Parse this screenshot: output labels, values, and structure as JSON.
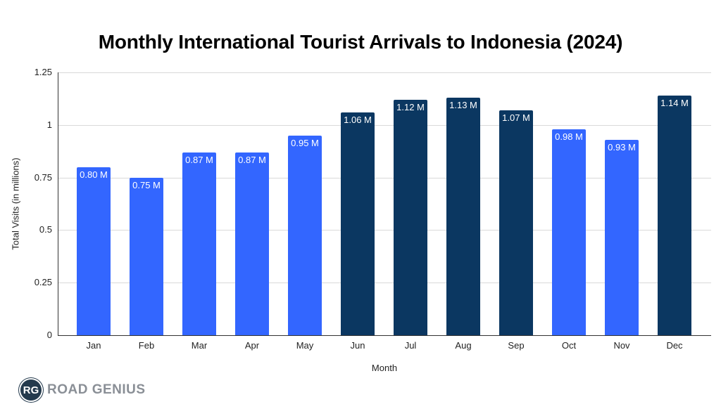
{
  "chart_data": {
    "type": "bar",
    "title": "Monthly International Tourist Arrivals to Indonesia (2024)",
    "xlabel": "Month",
    "ylabel": "Total Visits (in millions)",
    "ylim": [
      0,
      1.25
    ],
    "yticks": [
      "0",
      "0.25",
      "0.5",
      "0.75",
      "1",
      "1.25"
    ],
    "grid": true,
    "categories": [
      "Jan",
      "Feb",
      "Mar",
      "Apr",
      "May",
      "Jun",
      "Jul",
      "Aug",
      "Sep",
      "Oct",
      "Nov",
      "Dec"
    ],
    "values": [
      0.8,
      0.75,
      0.87,
      0.87,
      0.95,
      1.06,
      1.12,
      1.13,
      1.07,
      0.98,
      0.93,
      1.14
    ],
    "labels": [
      "0.80 M",
      "0.75 M",
      "0.87 M",
      "0.87 M",
      "0.95 M",
      "1.06 M",
      "1.12 M",
      "1.13 M",
      "1.07 M",
      "0.98 M",
      "0.93 M",
      "1.14 M"
    ],
    "bar_colors": [
      "#3366ff",
      "#3366ff",
      "#3366ff",
      "#3366ff",
      "#3366ff",
      "#0b3761",
      "#0b3761",
      "#0b3761",
      "#0b3761",
      "#3366ff",
      "#3366ff",
      "#0b3761"
    ],
    "colors": {
      "light": "#3366ff",
      "dark": "#0b3761"
    }
  },
  "branding": {
    "badge": "RG",
    "name": "ROAD GENIUS"
  }
}
